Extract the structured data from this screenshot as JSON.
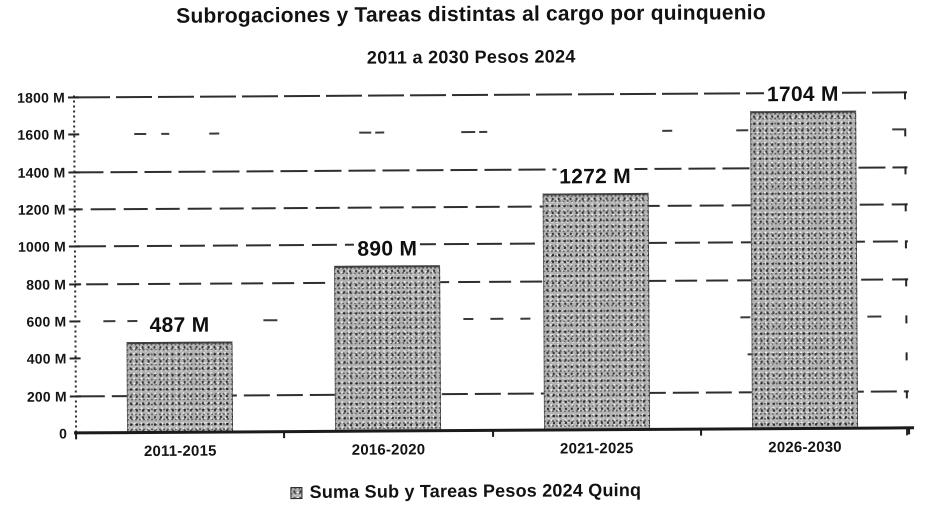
{
  "chart_data": {
    "type": "bar",
    "title": "Subrogaciones y Tareas distintas al cargo por quinquenio",
    "subtitle": "2011 a 2030 Pesos 2024",
    "categories": [
      "2011-2015",
      "2016-2020",
      "2021-2025",
      "2026-2030"
    ],
    "series": [
      {
        "name": "Suma Sub y Tareas Pesos 2024 Quinq",
        "values": [
          487,
          890,
          1272,
          1704
        ]
      }
    ],
    "bar_value_labels": [
      "487 M",
      "890 M",
      "1272 M",
      "1704 M"
    ],
    "xlabel": "",
    "ylabel": "",
    "ylim": [
      0,
      1800
    ],
    "ytick_values": [
      0,
      200,
      400,
      600,
      800,
      1000,
      1200,
      1400,
      1600,
      1800
    ],
    "ytick_labels": [
      "0",
      "200 M",
      "400 M",
      "600 M",
      "800 M",
      "1000 M",
      "1200 M",
      "1400 M",
      "1600 M",
      "1800 M"
    ],
    "grid": "horizontal-dashed",
    "grid_styles_by_tick": [
      "axis-solid",
      "dashed",
      "none",
      "sparse",
      "dashed",
      "dashed",
      "dashed",
      "dashed",
      "sparse",
      "dashed"
    ],
    "legend_position": "bottom"
  },
  "colors": {
    "background": "#ffffff",
    "text": "#141414",
    "grid": "#2a2a2a",
    "axis": "#1b1b1b",
    "bar_fill_halftone": "#b2b2b2"
  }
}
